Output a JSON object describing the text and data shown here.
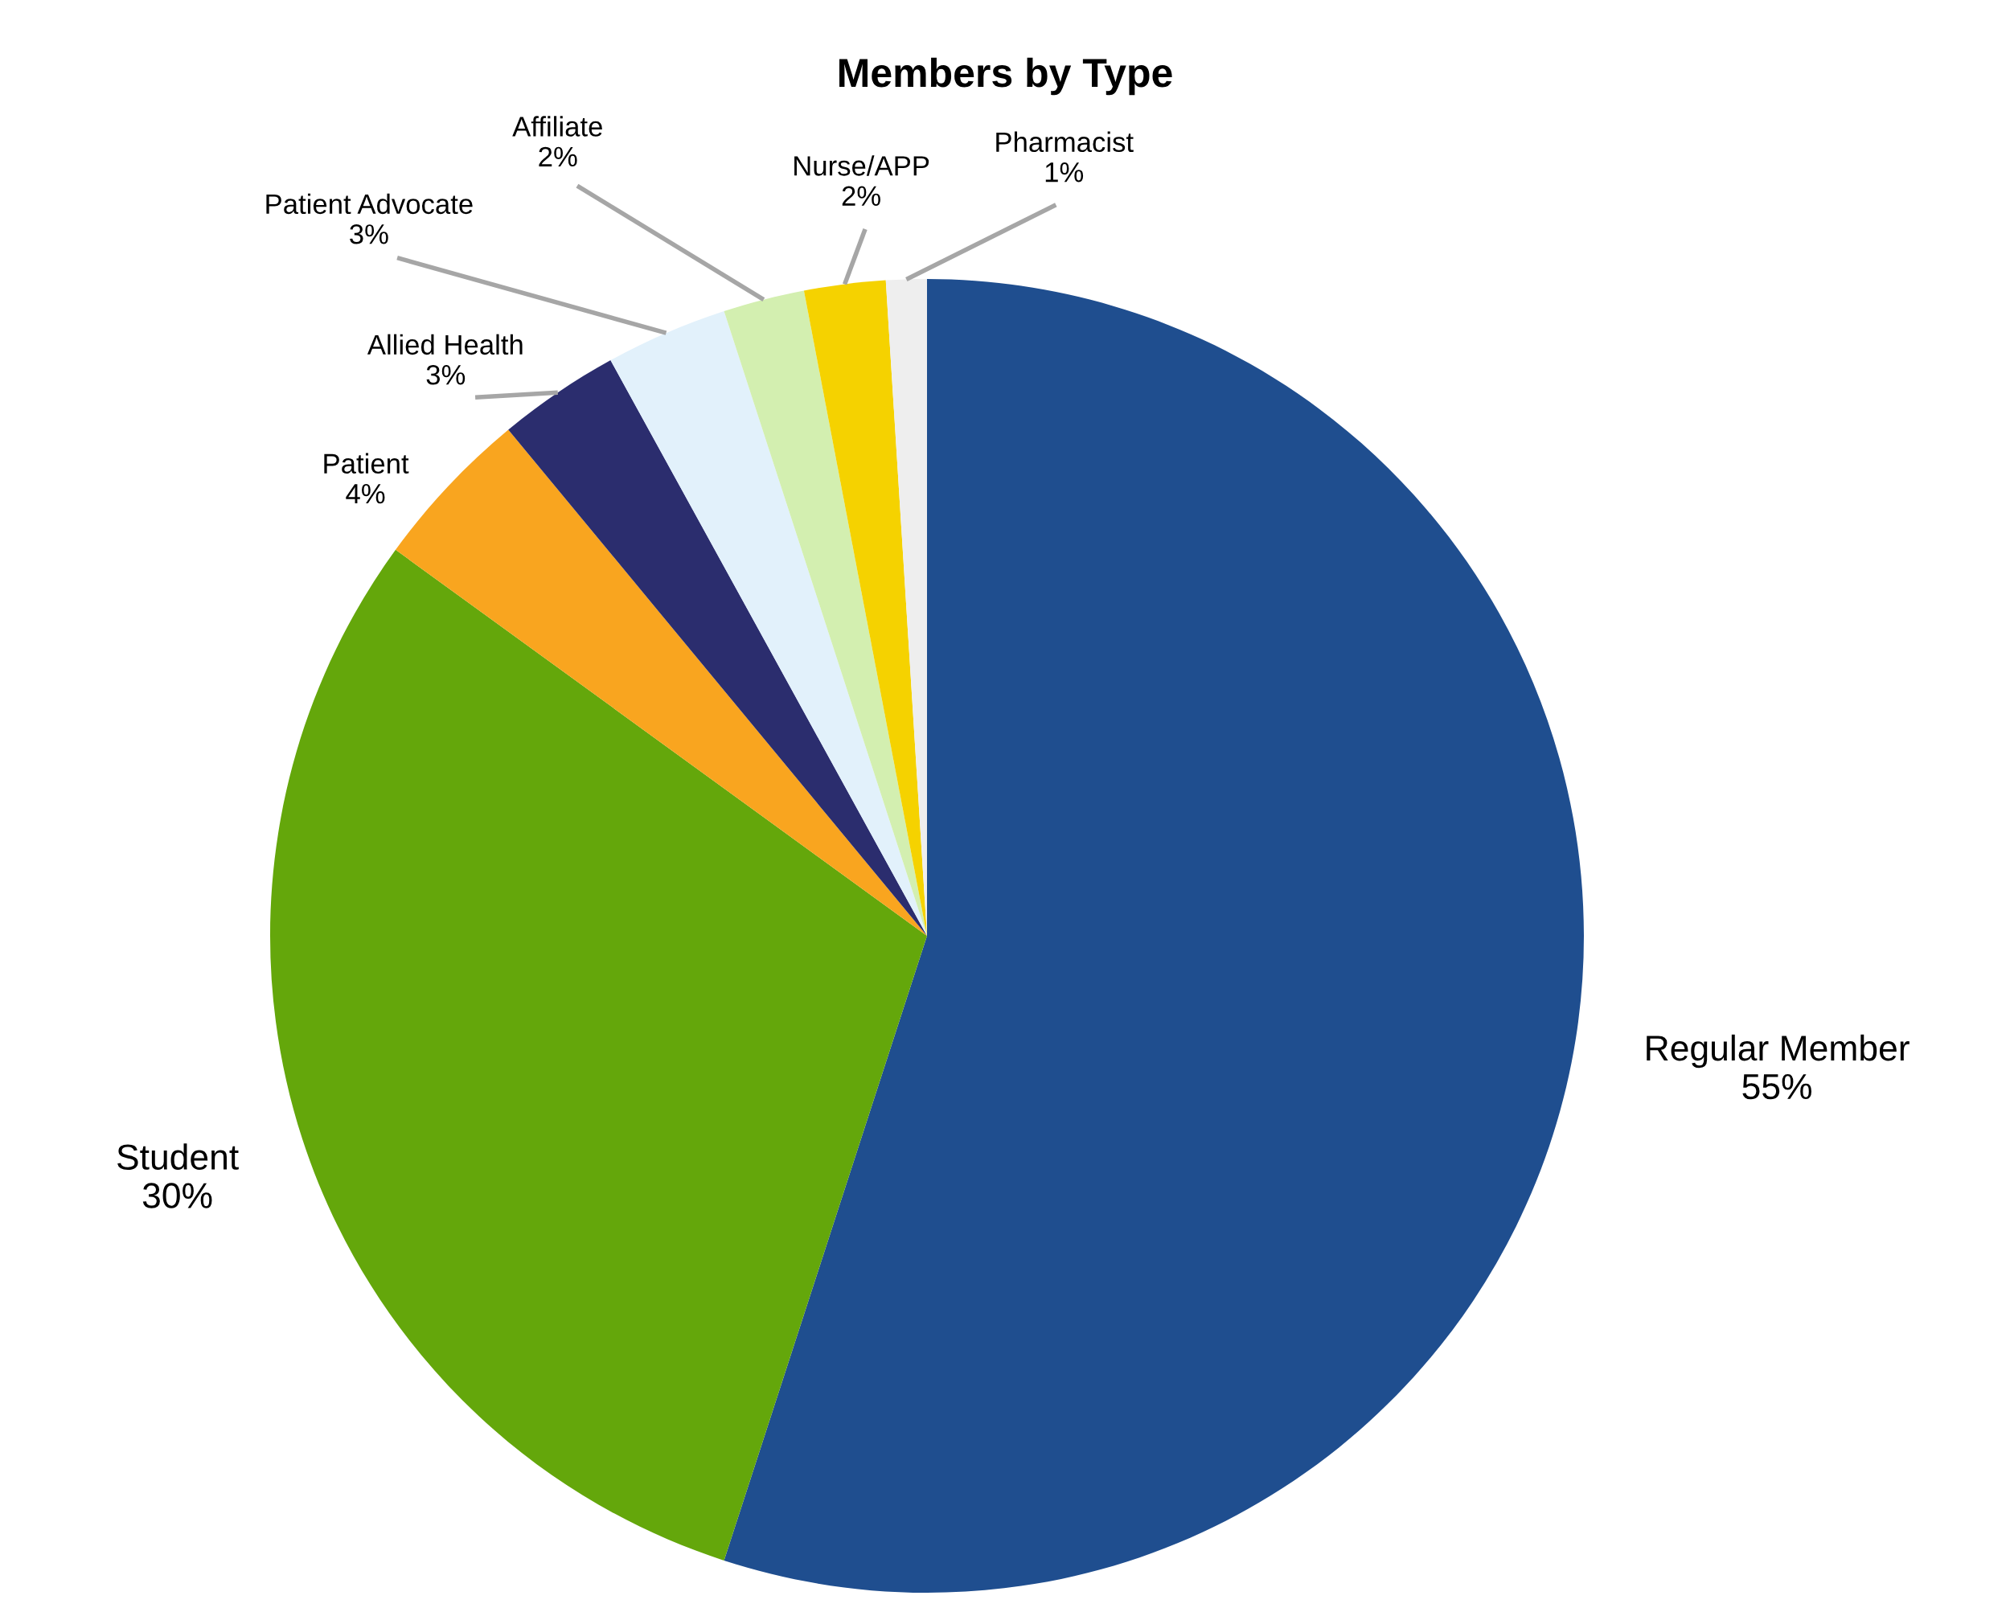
{
  "chart_data": {
    "type": "pie",
    "title": "Members by Type",
    "categories": [
      "Regular Member",
      "Student",
      "Patient",
      "Allied Health",
      "Patient Advocate",
      "Affiliate",
      "Nurse/APP",
      "Pharmacist"
    ],
    "values": [
      55,
      30,
      4,
      3,
      3,
      2,
      2,
      1
    ],
    "value_labels": [
      "55%",
      "30%",
      "4%",
      "3%",
      "3%",
      "2%",
      "2%",
      "1%"
    ],
    "colors": [
      "#1f4e8f",
      "#64a70b",
      "#f9a51f",
      "#2b2d6e",
      "#e2f1fb",
      "#d3efb0",
      "#f5d200",
      "#eeeeee"
    ],
    "legend": false
  }
}
